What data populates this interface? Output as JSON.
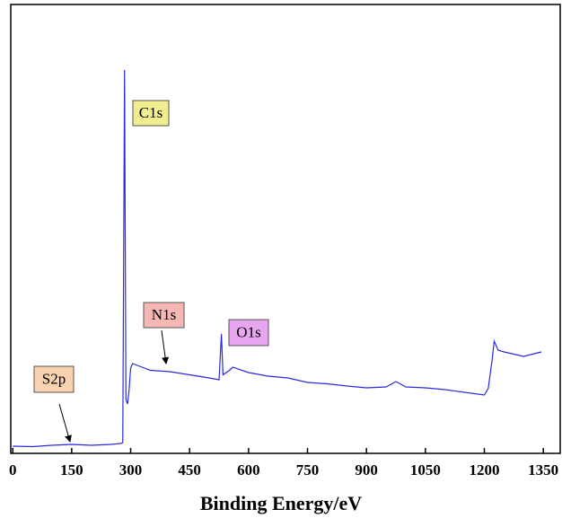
{
  "chart_data": {
    "type": "line",
    "x_label": "Binding Energy/eV",
    "x": [
      0,
      50,
      100,
      150,
      200,
      250,
      275,
      280,
      284.5,
      288,
      292,
      296,
      300,
      305,
      320,
      350,
      400,
      450,
      500,
      525,
      531,
      535,
      550,
      560,
      600,
      650,
      700,
      750,
      800,
      850,
      900,
      950,
      975,
      1000,
      1050,
      1100,
      1150,
      1200,
      1210,
      1220,
      1225,
      1235,
      1250,
      1300,
      1345
    ],
    "series": [
      {
        "color": "#2a2ae0",
        "values": [
          1.6,
          1.5,
          1.8,
          2.0,
          1.8,
          2.0,
          2.2,
          2.4,
          85.4,
          12,
          11,
          14,
          19,
          20,
          19.5,
          18.5,
          18.2,
          17.5,
          16.8,
          16.4,
          26.6,
          17.5,
          18.4,
          19.2,
          18.0,
          17.2,
          16.8,
          15.8,
          15.5,
          15.0,
          14.6,
          14.8,
          16,
          14.8,
          14.6,
          14.2,
          13.6,
          13.0,
          14.5,
          21,
          25,
          23,
          22.6,
          21.6,
          22.6
        ]
      }
    ],
    "xlim": [
      -5,
      1393
    ],
    "ylim": [
      0,
      100
    ],
    "xticks": [
      0,
      150,
      300,
      450,
      600,
      750,
      900,
      1050,
      1200,
      1350
    ],
    "annotations": [
      {
        "text": "C1s",
        "color": "#f0ee90"
      },
      {
        "text": "N1s",
        "color": "#f6b8b4"
      },
      {
        "text": "O1s",
        "color": "#e8a6f0"
      },
      {
        "text": "S2p",
        "color": "#f9d2b0"
      }
    ]
  }
}
